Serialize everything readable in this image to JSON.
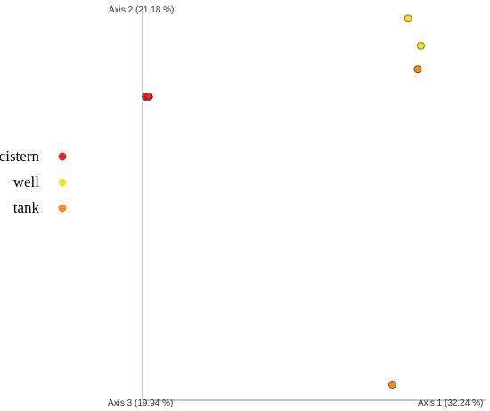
{
  "chart_data": {
    "type": "scatter",
    "title": "",
    "axes": {
      "x": "Axis 1 (32.24 %)",
      "y": "Axis 2 (21.18 %)",
      "z": "Axis 3 (19.94 %)"
    },
    "grid": false,
    "legend_position": "left",
    "series": [
      {
        "name": "cistern",
        "color": "#e8262a",
        "points": [
          {
            "x": 0.01,
            "y": 0.78
          },
          {
            "x": 0.02,
            "y": 0.78
          }
        ]
      },
      {
        "name": "well",
        "color": "#f5e12d",
        "points": [
          {
            "x": 0.84,
            "y": 0.98
          },
          {
            "x": 0.88,
            "y": 0.91
          }
        ]
      },
      {
        "name": "tank",
        "color": "#f28c28",
        "points": [
          {
            "x": 0.87,
            "y": 0.85
          },
          {
            "x": 0.79,
            "y": 0.04
          }
        ]
      }
    ],
    "xlim": [
      0,
      1
    ],
    "ylim": [
      0,
      1
    ]
  }
}
